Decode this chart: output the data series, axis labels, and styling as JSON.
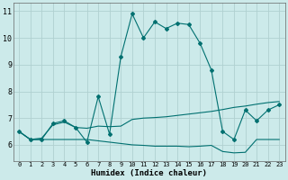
{
  "xlabel": "Humidex (Indice chaleur)",
  "xlim": [
    -0.5,
    23.5
  ],
  "ylim": [
    5.4,
    11.3
  ],
  "xticks": [
    0,
    1,
    2,
    3,
    4,
    5,
    6,
    7,
    8,
    9,
    10,
    11,
    12,
    13,
    14,
    15,
    16,
    17,
    18,
    19,
    20,
    21,
    22,
    23
  ],
  "yticks": [
    6,
    7,
    8,
    9,
    10,
    11
  ],
  "bg_color": "#cceaea",
  "grid_color": "#b0d0d0",
  "line_color": "#007070",
  "line1_x": [
    0,
    1,
    2,
    3,
    4,
    5,
    6,
    7,
    8,
    9,
    10,
    11,
    12,
    13,
    14,
    15,
    16,
    17,
    18,
    19,
    20,
    21,
    22,
    23
  ],
  "line1_y": [
    6.5,
    6.2,
    6.2,
    6.8,
    6.9,
    6.65,
    6.1,
    7.8,
    6.4,
    9.3,
    10.9,
    10.0,
    10.6,
    10.35,
    10.55,
    10.5,
    9.8,
    8.8,
    6.5,
    6.2,
    7.3,
    6.9,
    7.3,
    7.5
  ],
  "line2_x": [
    0,
    1,
    2,
    3,
    4,
    5,
    6,
    7,
    8,
    9,
    10,
    11,
    12,
    13,
    14,
    15,
    16,
    17,
    18,
    19,
    20,
    21,
    22,
    23
  ],
  "line2_y": [
    6.5,
    6.2,
    6.25,
    6.75,
    6.85,
    6.65,
    6.62,
    6.7,
    6.68,
    6.7,
    6.95,
    7.0,
    7.02,
    7.05,
    7.1,
    7.15,
    7.2,
    7.25,
    7.32,
    7.4,
    7.45,
    7.52,
    7.58,
    7.62
  ],
  "line3_x": [
    0,
    1,
    2,
    3,
    4,
    5,
    6,
    7,
    8,
    9,
    10,
    11,
    12,
    13,
    14,
    15,
    16,
    17,
    18,
    19,
    20,
    21,
    22,
    23
  ],
  "line3_y": [
    6.5,
    6.2,
    6.2,
    6.2,
    6.2,
    6.2,
    6.2,
    6.15,
    6.1,
    6.05,
    6.0,
    5.98,
    5.95,
    5.95,
    5.95,
    5.93,
    5.95,
    5.98,
    5.75,
    5.7,
    5.72,
    6.2,
    6.2,
    6.2
  ]
}
